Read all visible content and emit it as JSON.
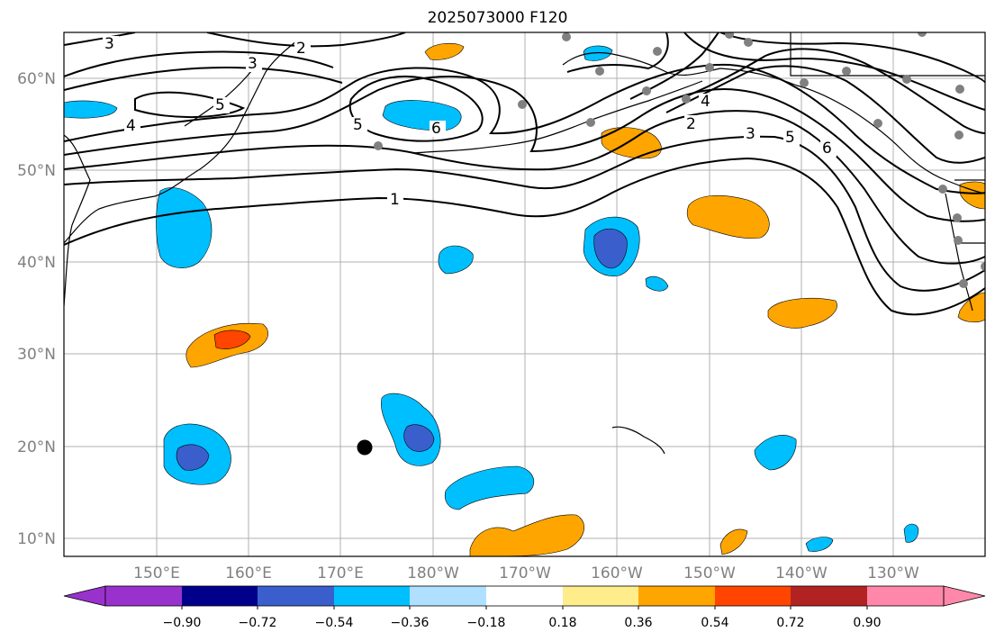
{
  "title": "2025073000 F120",
  "longitude_labels": [
    "150°E",
    "160°E",
    "170°E",
    "180°W",
    "170°W",
    "160°W",
    "150°W",
    "140°W",
    "130°W"
  ],
  "latitude_labels": [
    "60°N",
    "50°N",
    "40°N",
    "30°N",
    "20°N",
    "10°N"
  ],
  "contour_labels": [
    "1",
    "2",
    "2",
    "3",
    "3",
    "3",
    "4",
    "4",
    "5",
    "5",
    "5",
    "6",
    "6"
  ],
  "colorbar": {
    "tick_labels": [
      "−0.90",
      "−0.72",
      "−0.54",
      "−0.36",
      "−0.18",
      "0.18",
      "0.36",
      "0.54",
      "0.72",
      "0.90"
    ],
    "colors": [
      "#9932cc",
      "#00008b",
      "#3a5fcd",
      "#00bfff",
      "#b0e0ff",
      "#ffffff",
      "#ffec8b",
      "#ffa500",
      "#ff4500",
      "#b22222",
      "#ff88aa"
    ]
  },
  "colors": {
    "negative_light": "#00bfff",
    "negative_mid": "#3a5fcd",
    "positive_light": "#ffa500",
    "positive_mid": "#ff4500",
    "station_marker": "#808080",
    "center_marker": "#000000"
  }
}
